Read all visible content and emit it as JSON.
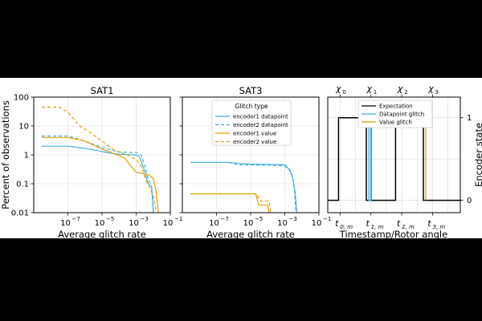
{
  "colors": {
    "background": "#000000",
    "figure": "#ffffff",
    "grid": "#d9d9d9",
    "blue": "#3daee0",
    "orange": "#e5a000",
    "black": "#000000"
  },
  "shared": {
    "ylabel": "Percent of observations",
    "xlabel": "Average glitch rate",
    "xlim": [
      1e-09,
      0.1
    ],
    "ylim": [
      0.01,
      100
    ],
    "x_ticks": [
      {
        "v": 1e-07,
        "label": "10"
      },
      {
        "v": 1e-05,
        "label": "10"
      },
      {
        "v": 0.001,
        "label": "10"
      },
      {
        "v": 0.1,
        "label": "10"
      }
    ],
    "x_tick_exps": [
      "−7",
      "−5",
      "−3",
      "−1"
    ],
    "y_ticks": [
      {
        "v": 100,
        "label": "100"
      },
      {
        "v": 10,
        "label": "10"
      },
      {
        "v": 1,
        "label": "1"
      },
      {
        "v": 0.1,
        "label": "0.1"
      },
      {
        "v": 0.01,
        "label": "0.01"
      }
    ],
    "series_styles": [
      {
        "name": "encoder1 datapoint",
        "color": "#3daee0",
        "dash": "none"
      },
      {
        "name": "encoder2 datapoint",
        "color": "#3daee0",
        "dash": "4,3"
      },
      {
        "name": "encoder1 value",
        "color": "#e5a000",
        "dash": "none"
      },
      {
        "name": "encoder2 value",
        "color": "#e5a000",
        "dash": "4,3"
      }
    ]
  },
  "chart_data": [
    {
      "type": "line",
      "title": "SAT1",
      "xscale": "log",
      "yscale": "log",
      "xlabel": "Average glitch rate",
      "ylabel": "Percent of observations",
      "grid": true,
      "series": [
        {
          "name": "encoder1 datapoint",
          "points": [
            [
              3e-09,
              2
            ],
            [
              1e-07,
              2
            ],
            [
              5e-07,
              1.8
            ],
            [
              3e-06,
              1.5
            ],
            [
              2e-05,
              1.2
            ],
            [
              0.0001,
              1.05
            ],
            [
              0.0008,
              1.0
            ],
            [
              0.0015,
              0.9
            ],
            [
              0.002,
              0.6
            ],
            [
              0.003,
              0.3
            ],
            [
              0.005,
              0.1
            ],
            [
              0.008,
              0.08
            ],
            [
              0.009,
              0.03
            ],
            [
              0.01,
              0.01
            ]
          ]
        },
        {
          "name": "encoder2 datapoint",
          "points": [
            [
              3e-09,
              4.5
            ],
            [
              1e-07,
              4.5
            ],
            [
              1e-06,
              3
            ],
            [
              1e-05,
              1.8
            ],
            [
              0.0001,
              1.25
            ],
            [
              0.001,
              1.2
            ],
            [
              0.002,
              1.0
            ],
            [
              0.003,
              0.5
            ],
            [
              0.005,
              0.15
            ],
            [
              0.008,
              0.08
            ],
            [
              0.01,
              0.01
            ]
          ]
        },
        {
          "name": "encoder1 value",
          "points": [
            [
              3e-09,
              4
            ],
            [
              1e-07,
              4
            ],
            [
              1e-06,
              3
            ],
            [
              1e-05,
              1.6
            ],
            [
              5e-05,
              1.1
            ],
            [
              0.0002,
              0.8
            ],
            [
              0.0005,
              0.4
            ],
            [
              0.001,
              0.25
            ],
            [
              0.003,
              0.22
            ],
            [
              0.006,
              0.2
            ],
            [
              0.01,
              0.15
            ],
            [
              0.015,
              0.05
            ],
            [
              0.02,
              0.01
            ]
          ]
        },
        {
          "name": "encoder2 value",
          "points": [
            [
              3e-09,
              45
            ],
            [
              3e-08,
              45
            ],
            [
              1e-07,
              30
            ],
            [
              5e-07,
              10
            ],
            [
              2e-06,
              6
            ],
            [
              1e-05,
              3
            ],
            [
              5e-05,
              1.5
            ],
            [
              0.0003,
              1.0
            ],
            [
              0.001,
              0.7
            ],
            [
              0.002,
              0.4
            ],
            [
              0.004,
              0.12
            ],
            [
              0.007,
              0.06
            ],
            [
              0.01,
              0.04
            ],
            [
              0.015,
              0.01
            ]
          ]
        }
      ]
    },
    {
      "type": "line",
      "title": "SAT3",
      "xscale": "log",
      "yscale": "log",
      "xlabel": "Average glitch rate",
      "grid": true,
      "legend": {
        "title": "Glitch type",
        "placement": "top-center"
      },
      "series": [
        {
          "name": "encoder1 datapoint",
          "points": [
            [
              3e-09,
              0.55
            ],
            [
              5e-07,
              0.55
            ],
            [
              2e-06,
              0.5
            ],
            [
              1e-05,
              0.48
            ],
            [
              0.0001,
              0.47
            ],
            [
              0.001,
              0.45
            ],
            [
              0.002,
              0.3
            ],
            [
              0.003,
              0.15
            ],
            [
              0.004,
              0.05
            ],
            [
              0.005,
              0.01
            ]
          ]
        },
        {
          "name": "encoder2 datapoint",
          "points": [
            [
              5e-07,
              0.55
            ],
            [
              2e-06,
              0.45
            ],
            [
              1e-05,
              0.45
            ],
            [
              0.0001,
              0.44
            ],
            [
              0.001,
              0.42
            ],
            [
              0.0025,
              0.25
            ],
            [
              0.0035,
              0.08
            ],
            [
              0.0045,
              0.01
            ]
          ]
        },
        {
          "name": "encoder1 value",
          "points": [
            [
              3e-09,
              0.045
            ],
            [
              1e-05,
              0.045
            ],
            [
              2e-05,
              0.045
            ],
            [
              3e-05,
              0.018
            ],
            [
              0.0001,
              0.018
            ],
            [
              0.00012,
              0.01
            ]
          ]
        },
        {
          "name": "encoder2 value",
          "points": [
            [
              3e-09,
              0.045
            ],
            [
              2e-05,
              0.045
            ],
            [
              4e-05,
              0.025
            ],
            [
              0.00012,
              0.025
            ],
            [
              0.00015,
              0.01
            ]
          ]
        }
      ]
    },
    {
      "type": "line",
      "title": "",
      "xlabel": "Timestamp/Rotor angle",
      "ylabel_right": "Encoder state",
      "top_ticks": [
        "χ",
        "χ",
        "χ",
        "χ"
      ],
      "top_tick_subs": [
        "0",
        "1",
        "2",
        "3"
      ],
      "bottom_ticks": [
        "t",
        "t",
        "t",
        "t"
      ],
      "bottom_tick_subs": [
        "0, m",
        "1, m",
        "2, m",
        "3, m"
      ],
      "tick_positions": [
        0,
        1,
        2,
        3
      ],
      "xlim": [
        -0.4,
        3.9
      ],
      "ylim": [
        -0.15,
        1.25
      ],
      "y_ticks": [
        {
          "v": 1,
          "label": "1"
        },
        {
          "v": 0,
          "label": "0"
        }
      ],
      "grid": true,
      "legend": {
        "placement": "top-center"
      },
      "series": [
        {
          "name": "Expectation",
          "color": "#000000",
          "points": [
            [
              -0.4,
              0
            ],
            [
              -0.05,
              0
            ],
            [
              -0.05,
              1
            ],
            [
              0.85,
              1
            ],
            [
              0.85,
              0
            ],
            [
              1.8,
              0
            ],
            [
              1.8,
              1
            ],
            [
              2.7,
              1
            ],
            [
              2.7,
              0
            ],
            [
              3.9,
              0
            ]
          ]
        },
        {
          "name": "Datapoint glitch",
          "color": "#3daee0",
          "points": [
            [
              0.93,
              1
            ],
            [
              0.93,
              0
            ],
            [
              0.99,
              0
            ],
            [
              0.99,
              1
            ],
            [
              1.02,
              1
            ],
            [
              1.02,
              0
            ]
          ]
        },
        {
          "name": "Value glitch",
          "color": "#e5a000",
          "points": [
            [
              2.78,
              1
            ],
            [
              2.78,
              0
            ]
          ]
        }
      ]
    }
  ]
}
